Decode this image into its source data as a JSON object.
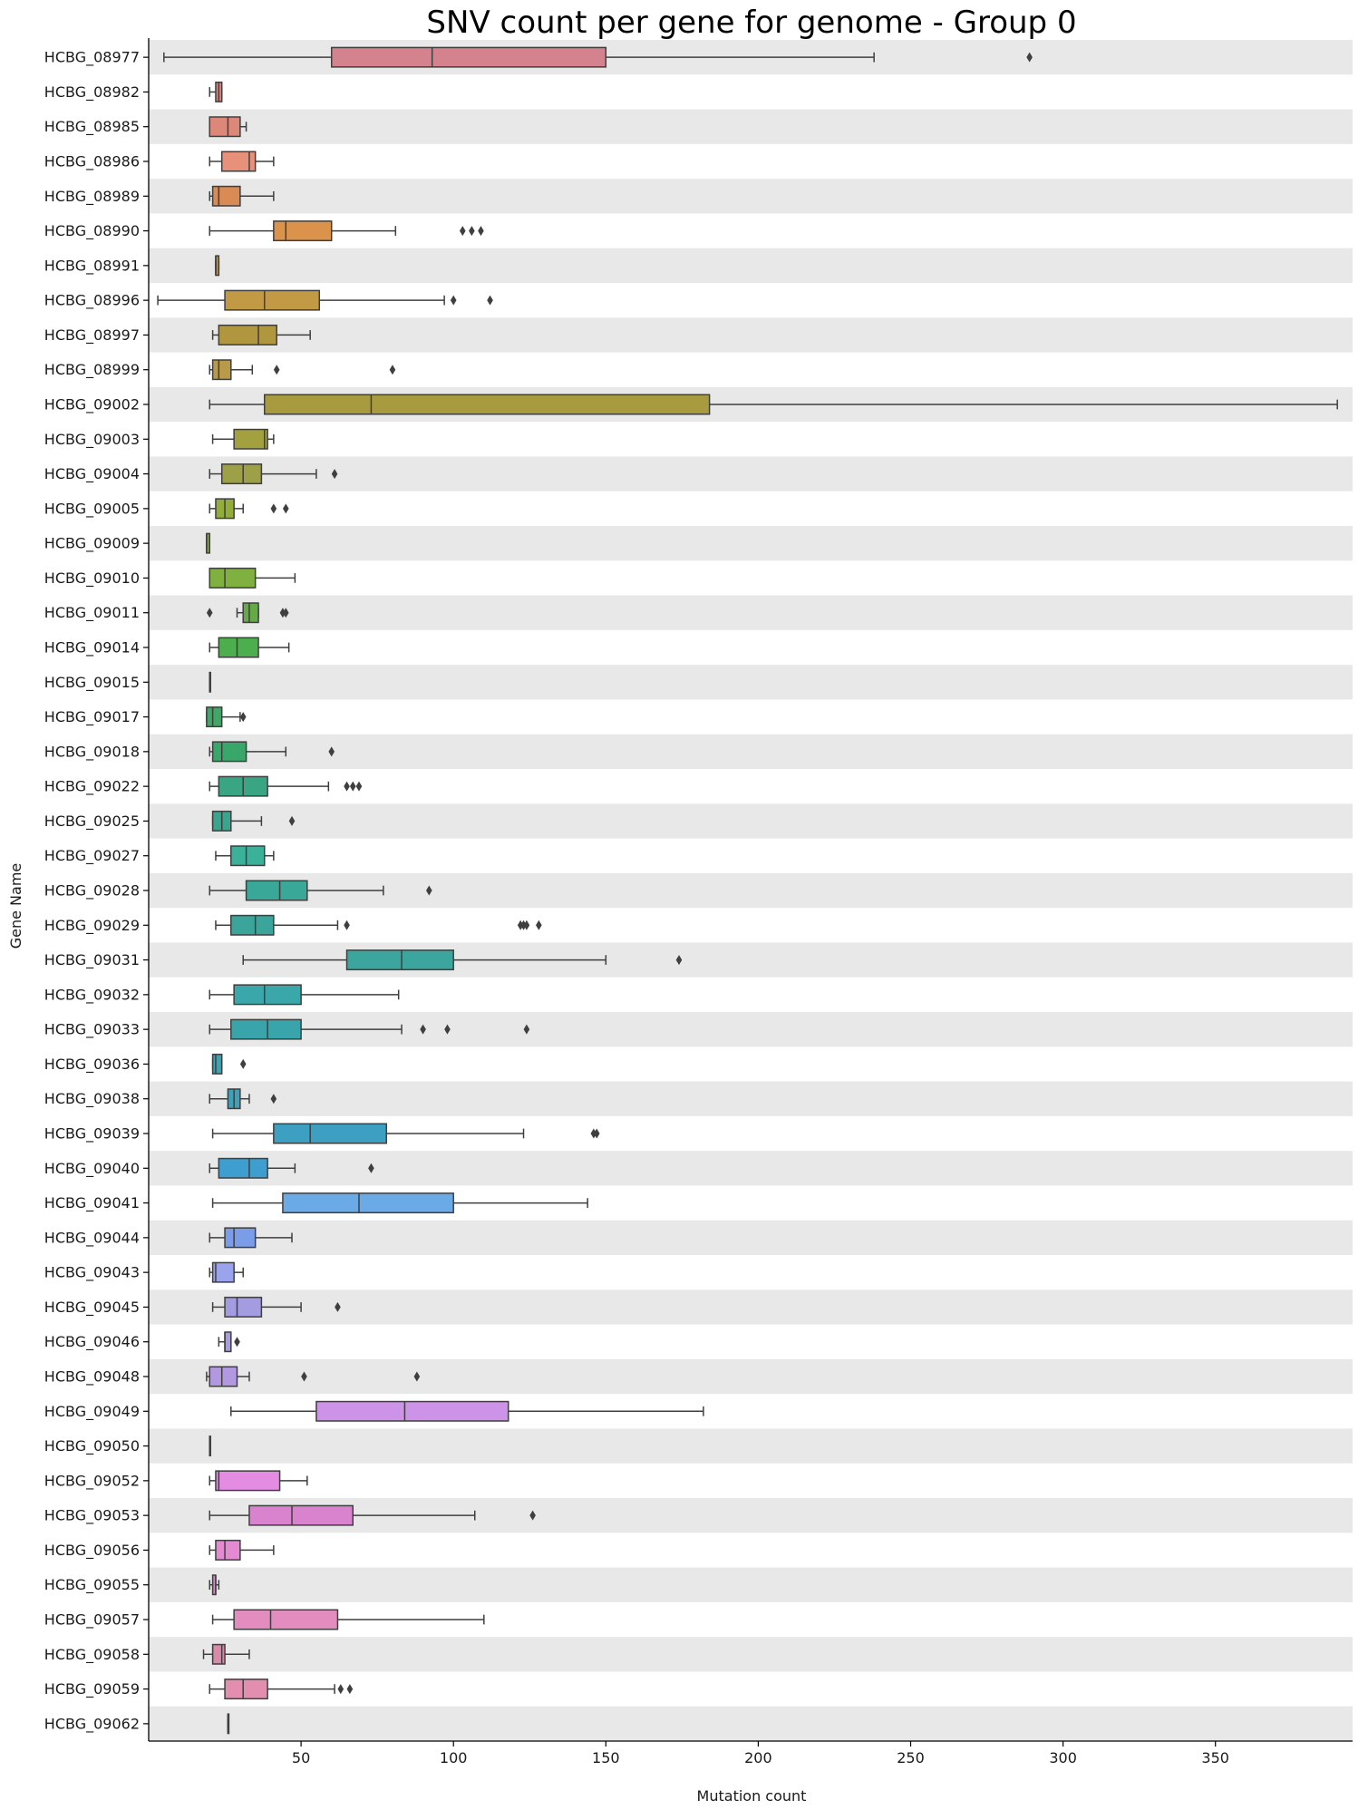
{
  "chart_data": {
    "type": "boxplot",
    "title": "SNV count per gene for genome - Group 0",
    "xlabel": "Mutation count",
    "ylabel": "Gene Name",
    "orientation": "horizontal",
    "xlim": [
      0,
      395
    ],
    "xticks": [
      50,
      100,
      150,
      200,
      250,
      300,
      350
    ],
    "grid": false,
    "row_banding": true,
    "colors": {
      "band": "#e8e8e8",
      "box_edge": "#3f3f3f",
      "flier": "#3f3f3f",
      "axis": "#000000"
    },
    "genes": [
      {
        "name": "HCBG_08977",
        "color": "#d4838e",
        "whislo": 5,
        "q1": 60,
        "med": 93,
        "q3": 150,
        "whishi": 238,
        "fliers": [
          289
        ]
      },
      {
        "name": "HCBG_08982",
        "color": "#e0857c",
        "whislo": 20,
        "q1": 22,
        "med": 23,
        "q3": 24,
        "whishi": 24,
        "fliers": []
      },
      {
        "name": "HCBG_08985",
        "color": "#dc8777",
        "whislo": 20,
        "q1": 20,
        "med": 26,
        "q3": 30,
        "whishi": 32,
        "fliers": []
      },
      {
        "name": "HCBG_08986",
        "color": "#e8917a",
        "whislo": 20,
        "q1": 24,
        "med": 33,
        "q3": 35,
        "whishi": 41,
        "fliers": []
      },
      {
        "name": "HCBG_08989",
        "color": "#d98a55",
        "whislo": 20,
        "q1": 21,
        "med": 23,
        "q3": 30,
        "whishi": 41,
        "fliers": []
      },
      {
        "name": "HCBG_08990",
        "color": "#db934c",
        "whislo": 20,
        "q1": 41,
        "med": 45,
        "q3": 60,
        "whishi": 81,
        "fliers": [
          103,
          106,
          109
        ]
      },
      {
        "name": "HCBG_08991",
        "color": "#c98f3d",
        "whislo": 22,
        "q1": 22,
        "med": 22,
        "q3": 23,
        "whishi": 23,
        "fliers": []
      },
      {
        "name": "HCBG_08996",
        "color": "#c29a45",
        "whislo": 3,
        "q1": 25,
        "med": 38,
        "q3": 56,
        "whishi": 97,
        "fliers": [
          100,
          112
        ]
      },
      {
        "name": "HCBG_08997",
        "color": "#b19640",
        "whislo": 21,
        "q1": 23,
        "med": 36,
        "q3": 42,
        "whishi": 53,
        "fliers": []
      },
      {
        "name": "HCBG_08999",
        "color": "#b99a48",
        "whislo": 20,
        "q1": 21,
        "med": 23,
        "q3": 27,
        "whishi": 34,
        "fliers": [
          42,
          80
        ]
      },
      {
        "name": "HCBG_09002",
        "color": "#a89a3f",
        "whislo": 20,
        "q1": 38,
        "med": 73,
        "q3": 184,
        "whishi": 390,
        "fliers": []
      },
      {
        "name": "HCBG_09003",
        "color": "#a3a040",
        "whislo": 21,
        "q1": 28,
        "med": 38,
        "q3": 39,
        "whishi": 41,
        "fliers": []
      },
      {
        "name": "HCBG_09004",
        "color": "#9da046",
        "whislo": 20,
        "q1": 24,
        "med": 31,
        "q3": 37,
        "whishi": 55,
        "fliers": [
          61
        ]
      },
      {
        "name": "HCBG_09005",
        "color": "#93ad3a",
        "whislo": 20,
        "q1": 22,
        "med": 25,
        "q3": 28,
        "whishi": 31,
        "fliers": [
          41,
          45
        ]
      },
      {
        "name": "HCBG_09009",
        "color": "#87ad3a",
        "whislo": 19,
        "q1": 19,
        "med": 19,
        "q3": 20,
        "whishi": 20,
        "fliers": []
      },
      {
        "name": "HCBG_09010",
        "color": "#80b040",
        "whislo": 20,
        "q1": 20,
        "med": 25,
        "q3": 35,
        "whishi": 48,
        "fliers": []
      },
      {
        "name": "HCBG_09011",
        "color": "#64ab46",
        "whislo": 29,
        "q1": 31,
        "med": 33,
        "q3": 36,
        "whishi": 36,
        "fliers": [
          20,
          44,
          45
        ]
      },
      {
        "name": "HCBG_09014",
        "color": "#4cae4c",
        "whislo": 20,
        "q1": 23,
        "med": 29,
        "q3": 36,
        "whishi": 46,
        "fliers": []
      },
      {
        "name": "HCBG_09015",
        "color": "#45ab55",
        "whislo": 20,
        "q1": 20,
        "med": 20,
        "q3": 20,
        "whishi": 20,
        "fliers": []
      },
      {
        "name": "HCBG_09017",
        "color": "#3ea865",
        "whislo": 19,
        "q1": 19,
        "med": 21,
        "q3": 24,
        "whishi": 30,
        "fliers": [
          31
        ]
      },
      {
        "name": "HCBG_09018",
        "color": "#39a66a",
        "whislo": 20,
        "q1": 21,
        "med": 24,
        "q3": 32,
        "whishi": 45,
        "fliers": [
          60
        ]
      },
      {
        "name": "HCBG_09022",
        "color": "#3aa582",
        "whislo": 20,
        "q1": 23,
        "med": 31,
        "q3": 39,
        "whishi": 59,
        "fliers": [
          65,
          67,
          69
        ]
      },
      {
        "name": "HCBG_09025",
        "color": "#3aa58c",
        "whislo": 21,
        "q1": 21,
        "med": 24,
        "q3": 27,
        "whishi": 37,
        "fliers": [
          47
        ]
      },
      {
        "name": "HCBG_09027",
        "color": "#3db09a",
        "whislo": 22,
        "q1": 27,
        "med": 32,
        "q3": 38,
        "whishi": 41,
        "fliers": []
      },
      {
        "name": "HCBG_09028",
        "color": "#3aa898",
        "whislo": 20,
        "q1": 32,
        "med": 43,
        "q3": 52,
        "whishi": 77,
        "fliers": [
          92
        ]
      },
      {
        "name": "HCBG_09029",
        "color": "#3ba59c",
        "whislo": 22,
        "q1": 27,
        "med": 35,
        "q3": 41,
        "whishi": 62,
        "fliers": [
          65,
          122,
          123,
          124,
          128
        ]
      },
      {
        "name": "HCBG_09031",
        "color": "#3ba59e",
        "whislo": 31,
        "q1": 65,
        "med": 83,
        "q3": 100,
        "whishi": 150,
        "fliers": [
          174
        ]
      },
      {
        "name": "HCBG_09032",
        "color": "#3aa8ab",
        "whislo": 20,
        "q1": 28,
        "med": 38,
        "q3": 50,
        "whishi": 82,
        "fliers": []
      },
      {
        "name": "HCBG_09033",
        "color": "#3aa4ab",
        "whislo": 20,
        "q1": 27,
        "med": 39,
        "q3": 50,
        "whishi": 83,
        "fliers": [
          90,
          98,
          124
        ]
      },
      {
        "name": "HCBG_09036",
        "color": "#3ca3b2",
        "whislo": 21,
        "q1": 21,
        "med": 22,
        "q3": 24,
        "whishi": 24,
        "fliers": [
          31
        ]
      },
      {
        "name": "HCBG_09038",
        "color": "#3fa0b8",
        "whislo": 20,
        "q1": 26,
        "med": 28,
        "q3": 30,
        "whishi": 33,
        "fliers": [
          41
        ]
      },
      {
        "name": "HCBG_09039",
        "color": "#3da0c2",
        "whislo": 21,
        "q1": 41,
        "med": 53,
        "q3": 78,
        "whishi": 123,
        "fliers": [
          146,
          147
        ]
      },
      {
        "name": "HCBG_09040",
        "color": "#3e9ed0",
        "whislo": 20,
        "q1": 23,
        "med": 33,
        "q3": 39,
        "whishi": 48,
        "fliers": [
          73
        ]
      },
      {
        "name": "HCBG_09041",
        "color": "#6aaae6",
        "whislo": 21,
        "q1": 44,
        "med": 69,
        "q3": 100,
        "whishi": 144,
        "fliers": []
      },
      {
        "name": "HCBG_09044",
        "color": "#7b9ce8",
        "whislo": 20,
        "q1": 25,
        "med": 28,
        "q3": 35,
        "whishi": 47,
        "fliers": []
      },
      {
        "name": "HCBG_09043",
        "color": "#9aa4ec",
        "whislo": 20,
        "q1": 21,
        "med": 22,
        "q3": 28,
        "whishi": 31,
        "fliers": []
      },
      {
        "name": "HCBG_09045",
        "color": "#a39ce0",
        "whislo": 21,
        "q1": 25,
        "med": 29,
        "q3": 37,
        "whishi": 50,
        "fliers": [
          62
        ]
      },
      {
        "name": "HCBG_09046",
        "color": "#aa9be6",
        "whislo": 23,
        "q1": 25,
        "med": 25,
        "q3": 27,
        "whishi": 27,
        "fliers": [
          29
        ]
      },
      {
        "name": "HCBG_09048",
        "color": "#b198e0",
        "whislo": 19,
        "q1": 20,
        "med": 24,
        "q3": 29,
        "whishi": 33,
        "fliers": [
          51,
          88
        ]
      },
      {
        "name": "HCBG_09049",
        "color": "#cc93e8",
        "whislo": 27,
        "q1": 55,
        "med": 84,
        "q3": 118,
        "whishi": 182,
        "fliers": []
      },
      {
        "name": "HCBG_09050",
        "color": "#d18fe6",
        "whislo": 20,
        "q1": 20,
        "med": 20,
        "q3": 20,
        "whishi": 20,
        "fliers": []
      },
      {
        "name": "HCBG_09052",
        "color": "#e38ce2",
        "whislo": 20,
        "q1": 22,
        "med": 23,
        "q3": 43,
        "whishi": 52,
        "fliers": []
      },
      {
        "name": "HCBG_09053",
        "color": "#d983cf",
        "whislo": 20,
        "q1": 33,
        "med": 47,
        "q3": 67,
        "whishi": 107,
        "fliers": [
          126
        ]
      },
      {
        "name": "HCBG_09056",
        "color": "#e48ad2",
        "whislo": 20,
        "q1": 22,
        "med": 25,
        "q3": 30,
        "whishi": 41,
        "fliers": []
      },
      {
        "name": "HCBG_09055",
        "color": "#d488c3",
        "whislo": 20,
        "q1": 21,
        "med": 22,
        "q3": 22,
        "whishi": 23,
        "fliers": []
      },
      {
        "name": "HCBG_09057",
        "color": "#e28cc0",
        "whislo": 21,
        "q1": 28,
        "med": 40,
        "q3": 62,
        "whishi": 110,
        "fliers": []
      },
      {
        "name": "HCBG_09058",
        "color": "#d98aa8",
        "whislo": 18,
        "q1": 21,
        "med": 24,
        "q3": 25,
        "whishi": 33,
        "fliers": []
      },
      {
        "name": "HCBG_09059",
        "color": "#e48eaf",
        "whislo": 20,
        "q1": 25,
        "med": 31,
        "q3": 39,
        "whishi": 61,
        "fliers": [
          63,
          66
        ]
      },
      {
        "name": "HCBG_09062",
        "color": "#d98b9c",
        "whislo": 26,
        "q1": 26,
        "med": 26,
        "q3": 26,
        "whishi": 26,
        "fliers": []
      }
    ]
  }
}
